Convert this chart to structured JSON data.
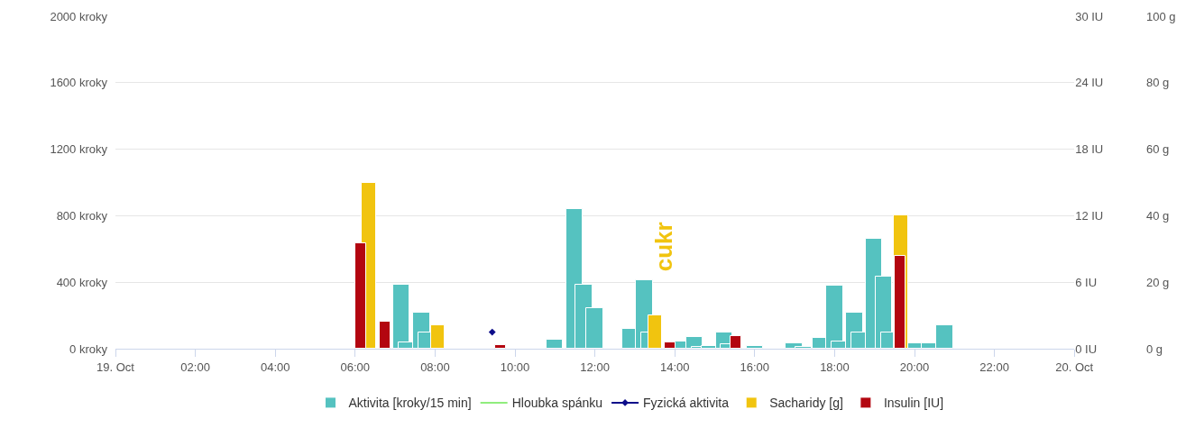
{
  "chart_data": {
    "type": "bar",
    "xlim": [
      0,
      24
    ],
    "xticks": [
      {
        "value": 0,
        "label": "19. Oct"
      },
      {
        "value": 2,
        "label": "02:00"
      },
      {
        "value": 4,
        "label": "04:00"
      },
      {
        "value": 6,
        "label": "06:00"
      },
      {
        "value": 8,
        "label": "08:00"
      },
      {
        "value": 10,
        "label": "10:00"
      },
      {
        "value": 12,
        "label": "12:00"
      },
      {
        "value": 14,
        "label": "14:00"
      },
      {
        "value": 16,
        "label": "16:00"
      },
      {
        "value": 18,
        "label": "18:00"
      },
      {
        "value": 20,
        "label": "20:00"
      },
      {
        "value": 22,
        "label": "22:00"
      },
      {
        "value": 24,
        "label": "20. Oct"
      }
    ],
    "ylim": [
      0,
      2000
    ],
    "yticks": [
      {
        "value": 0,
        "label": "0 kroky"
      },
      {
        "value": 400,
        "label": "400 kroky"
      },
      {
        "value": 800,
        "label": "800 kroky"
      },
      {
        "value": 1200,
        "label": "1200 kroky"
      },
      {
        "value": 1600,
        "label": "1600 kroky"
      },
      {
        "value": 2000,
        "label": "2000 kroky"
      }
    ],
    "y2lim": [
      0,
      30
    ],
    "y2ticks": [
      {
        "value": 0,
        "label": "0 IU"
      },
      {
        "value": 6,
        "label": "6 IU"
      },
      {
        "value": 12,
        "label": "12 IU"
      },
      {
        "value": 18,
        "label": "18 IU"
      },
      {
        "value": 24,
        "label": "24 IU"
      },
      {
        "value": 30,
        "label": "30 IU"
      }
    ],
    "y3lim": [
      0,
      100
    ],
    "y3ticks": [
      {
        "value": 0,
        "label": "0 g"
      },
      {
        "value": 20,
        "label": "20 g"
      },
      {
        "value": 40,
        "label": "40 g"
      },
      {
        "value": 60,
        "label": "60 g"
      },
      {
        "value": 80,
        "label": "80 g"
      },
      {
        "value": 100,
        "label": "100 g"
      }
    ],
    "grid": "y",
    "legend": "bottom",
    "annotations": [
      "cukr"
    ],
    "series": [
      {
        "name": "Aktivita [kroky/15 min]",
        "color": "#55c2c0",
        "x": [
          7.16,
          7.3,
          7.66,
          7.8,
          10.99,
          11.49,
          11.73,
          12.0,
          12.89,
          13.24,
          13.36,
          14.14,
          14.49,
          14.63,
          14.88,
          15.24,
          15.35,
          16.0,
          16.99,
          17.22,
          17.65,
          18.0,
          18.14,
          18.5,
          18.64,
          18.98,
          19.23,
          19.37,
          20.05,
          20.38,
          20.75
        ],
        "values": [
          384,
          40,
          217,
          97,
          54,
          838,
          384,
          243,
          118,
          413,
          95,
          45,
          73,
          12,
          16,
          99,
          26,
          16,
          33,
          9,
          66,
          382,
          43,
          215,
          95,
          660,
          431,
          95,
          35,
          30,
          142
        ]
      },
      {
        "name": "Hloubka spánku",
        "type": "line",
        "color": "#90ed7d"
      },
      {
        "name": "Fyzická aktivita",
        "type": "line",
        "color": "#0d0d8a",
        "marker": "diamond",
        "x": [
          9.43
        ],
        "values": [
          100
        ]
      },
      {
        "name": "Sacharidy [g]",
        "axis": "y3",
        "color": "#f1c40f",
        "x": [
          6.34,
          8.07,
          13.51,
          19.66
        ],
        "values": [
          50,
          7,
          10,
          40
        ]
      },
      {
        "name": "Insulin [IU]",
        "axis": "y2",
        "color": "#b30610",
        "x": [
          6.14,
          6.75,
          9.64,
          13.88,
          15.54,
          19.64
        ],
        "values": [
          9.5,
          2.4,
          0.3,
          0.6,
          1.1,
          8.4
        ]
      }
    ]
  }
}
